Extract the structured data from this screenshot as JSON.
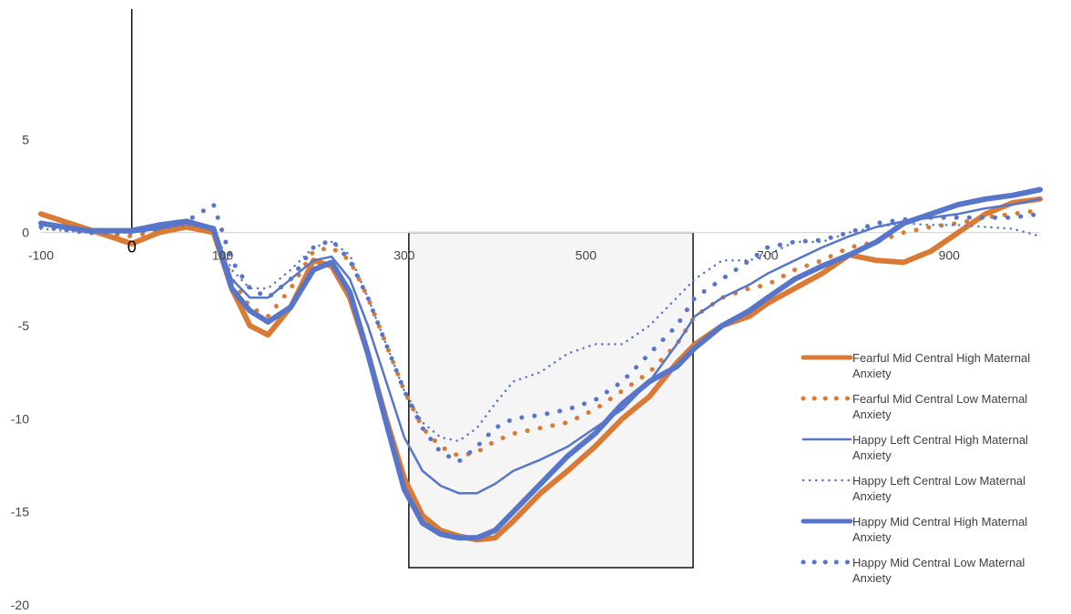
{
  "chart_data": {
    "type": "line",
    "title": "",
    "xlabel": "",
    "ylabel": "",
    "xlim": [
      -100,
      1000
    ],
    "ylim": [
      -20,
      12
    ],
    "x_ticks": [
      -100,
      100,
      300,
      500,
      700,
      900
    ],
    "y_ticks": [
      5,
      0,
      -5,
      -10,
      -15,
      -20
    ],
    "stimulus_onset_label": "0",
    "highlight_window": {
      "x": [
        305,
        618
      ],
      "y": [
        -18,
        0
      ]
    },
    "legend_position": "right",
    "colors": {
      "fearful": "#d97b35",
      "happy": "#5876c9",
      "axis": "#000000",
      "zero_line": "#d9d9d9",
      "window_fill": "#f5f5f5"
    },
    "series": [
      {
        "name": "Fearful Mid Central High Maternal Anxiety",
        "legend_lines": [
          "Fearful Mid Central High Maternal",
          "Anxiety"
        ],
        "color": "#d97b35",
        "style": "solid",
        "weight": "thick",
        "x": [
          -100,
          -50,
          0,
          30,
          60,
          90,
          110,
          130,
          150,
          175,
          200,
          220,
          240,
          260,
          280,
          300,
          320,
          340,
          360,
          380,
          400,
          420,
          450,
          480,
          510,
          540,
          570,
          600,
          620,
          650,
          680,
          700,
          730,
          760,
          790,
          820,
          850,
          880,
          910,
          940,
          970,
          1000
        ],
        "y": [
          1.0,
          0.2,
          -0.6,
          0.0,
          0.3,
          0.0,
          -3.0,
          -5.0,
          -5.5,
          -4.0,
          -1.5,
          -1.8,
          -3.5,
          -6.5,
          -10.0,
          -13.2,
          -15.2,
          -16.0,
          -16.3,
          -16.5,
          -16.4,
          -15.5,
          -14.0,
          -12.8,
          -11.5,
          -10.0,
          -8.8,
          -7.0,
          -6.0,
          -5.0,
          -4.5,
          -3.8,
          -3.0,
          -2.2,
          -1.2,
          -1.5,
          -1.6,
          -1.0,
          0.0,
          1.0,
          1.6,
          1.8
        ]
      },
      {
        "name": "Fearful Mid Central Low Maternal Anxiety",
        "legend_lines": [
          "Fearful Mid Central Low Maternal",
          "Anxiety"
        ],
        "color": "#d97b35",
        "style": "dotted",
        "weight": "medium",
        "x": [
          -100,
          -50,
          0,
          30,
          60,
          90,
          110,
          130,
          150,
          175,
          200,
          220,
          240,
          260,
          280,
          300,
          320,
          340,
          360,
          380,
          400,
          420,
          450,
          480,
          510,
          540,
          570,
          600,
          620,
          650,
          680,
          700,
          730,
          760,
          790,
          820,
          850,
          880,
          910,
          940,
          970,
          1000
        ],
        "y": [
          0.5,
          0.0,
          -0.2,
          0.1,
          0.4,
          0.2,
          -2.5,
          -4.0,
          -4.5,
          -3.0,
          -1.0,
          -0.8,
          -1.5,
          -3.5,
          -6.0,
          -8.5,
          -10.5,
          -11.5,
          -12.0,
          -11.8,
          -11.2,
          -10.8,
          -10.5,
          -10.2,
          -9.5,
          -8.5,
          -7.5,
          -6.0,
          -4.5,
          -3.5,
          -3.0,
          -2.8,
          -2.0,
          -1.5,
          -0.8,
          -0.5,
          0.0,
          0.3,
          0.5,
          0.8,
          1.0,
          1.2
        ]
      },
      {
        "name": "Happy Left Central High Maternal Anxiety",
        "legend_lines": [
          "Happy Left Central High Maternal",
          "Anxiety"
        ],
        "color": "#5876c9",
        "style": "solid",
        "weight": "thin",
        "x": [
          -100,
          -50,
          0,
          30,
          60,
          90,
          110,
          130,
          150,
          175,
          200,
          220,
          240,
          260,
          280,
          300,
          320,
          340,
          360,
          380,
          400,
          420,
          450,
          480,
          510,
          540,
          570,
          600,
          620,
          650,
          680,
          700,
          730,
          760,
          790,
          820,
          850,
          880,
          910,
          940,
          970,
          1000
        ],
        "y": [
          0.5,
          0.1,
          0.0,
          0.2,
          0.5,
          0.3,
          -2.5,
          -3.5,
          -3.5,
          -2.5,
          -1.5,
          -1.3,
          -2.5,
          -5.0,
          -8.0,
          -11.0,
          -12.8,
          -13.6,
          -14.0,
          -14.0,
          -13.5,
          -12.8,
          -12.2,
          -11.5,
          -10.5,
          -9.5,
          -8.0,
          -6.0,
          -4.5,
          -3.5,
          -2.8,
          -2.2,
          -1.5,
          -0.8,
          -0.2,
          0.3,
          0.6,
          0.8,
          1.0,
          1.3,
          1.5,
          1.8
        ]
      },
      {
        "name": "Happy Left Central Low Maternal Anxiety",
        "legend_lines": [
          "Happy Left Central Low Maternal",
          "Anxiety"
        ],
        "color": "#5876c9",
        "style": "dotted",
        "weight": "thin",
        "x": [
          -100,
          -50,
          0,
          30,
          60,
          90,
          110,
          130,
          150,
          175,
          200,
          220,
          240,
          260,
          280,
          300,
          320,
          340,
          360,
          380,
          400,
          420,
          450,
          480,
          510,
          540,
          570,
          600,
          620,
          650,
          680,
          700,
          730,
          760,
          790,
          820,
          850,
          880,
          910,
          940,
          970,
          1000
        ],
        "y": [
          0.2,
          0.0,
          0.0,
          0.2,
          0.4,
          0.2,
          -2.0,
          -3.0,
          -3.0,
          -2.0,
          -0.8,
          -0.5,
          -1.2,
          -3.5,
          -6.0,
          -8.5,
          -10.2,
          -11.0,
          -11.2,
          -10.5,
          -9.2,
          -8.0,
          -7.5,
          -6.5,
          -6.0,
          -6.0,
          -5.0,
          -3.5,
          -2.5,
          -1.5,
          -1.5,
          -1.2,
          -0.5,
          -0.5,
          0.0,
          0.3,
          0.5,
          0.4,
          0.4,
          0.3,
          0.2,
          -0.2
        ]
      },
      {
        "name": "Happy Mid Central High Maternal Anxiety",
        "legend_lines": [
          "Happy Mid Central High Maternal",
          "Anxiety"
        ],
        "color": "#5876c9",
        "style": "solid",
        "weight": "thick",
        "x": [
          -100,
          -50,
          0,
          30,
          60,
          90,
          110,
          130,
          150,
          175,
          200,
          220,
          240,
          260,
          280,
          300,
          320,
          340,
          360,
          380,
          400,
          420,
          450,
          480,
          510,
          540,
          570,
          600,
          620,
          650,
          680,
          700,
          730,
          760,
          790,
          820,
          850,
          880,
          910,
          940,
          970,
          1000
        ],
        "y": [
          0.5,
          0.1,
          0.1,
          0.4,
          0.6,
          0.2,
          -3.0,
          -4.2,
          -4.8,
          -4.0,
          -2.0,
          -1.6,
          -3.2,
          -6.5,
          -10.2,
          -13.8,
          -15.6,
          -16.2,
          -16.4,
          -16.4,
          -16.0,
          -15.0,
          -13.5,
          -12.0,
          -10.8,
          -9.2,
          -8.0,
          -7.2,
          -6.2,
          -5.0,
          -4.2,
          -3.5,
          -2.5,
          -1.8,
          -1.2,
          -0.5,
          0.5,
          1.0,
          1.5,
          1.8,
          2.0,
          2.3
        ]
      },
      {
        "name": "Happy Mid Central Low Maternal Anxiety",
        "legend_lines": [
          "Happy Mid Central Low Maternal",
          "Anxiety"
        ],
        "color": "#5876c9",
        "style": "dotted",
        "weight": "medium",
        "x": [
          -100,
          -50,
          0,
          30,
          60,
          90,
          110,
          130,
          150,
          175,
          200,
          220,
          240,
          260,
          280,
          300,
          320,
          340,
          360,
          380,
          400,
          420,
          450,
          480,
          510,
          540,
          570,
          600,
          620,
          650,
          680,
          700,
          730,
          760,
          790,
          820,
          850,
          880,
          910,
          940,
          970,
          1000
        ],
        "y": [
          0.3,
          0.0,
          0.0,
          0.2,
          0.6,
          1.5,
          -1.5,
          -3.0,
          -3.5,
          -2.5,
          -0.8,
          -0.4,
          -1.5,
          -3.5,
          -6.0,
          -8.5,
          -10.5,
          -11.8,
          -12.3,
          -11.5,
          -10.5,
          -10.0,
          -9.8,
          -9.5,
          -9.0,
          -8.0,
          -6.5,
          -5.0,
          -3.5,
          -2.5,
          -1.5,
          -0.8,
          -0.5,
          -0.4,
          0.0,
          0.5,
          0.7,
          0.8,
          0.8,
          0.8,
          0.8,
          1.0
        ]
      }
    ]
  }
}
